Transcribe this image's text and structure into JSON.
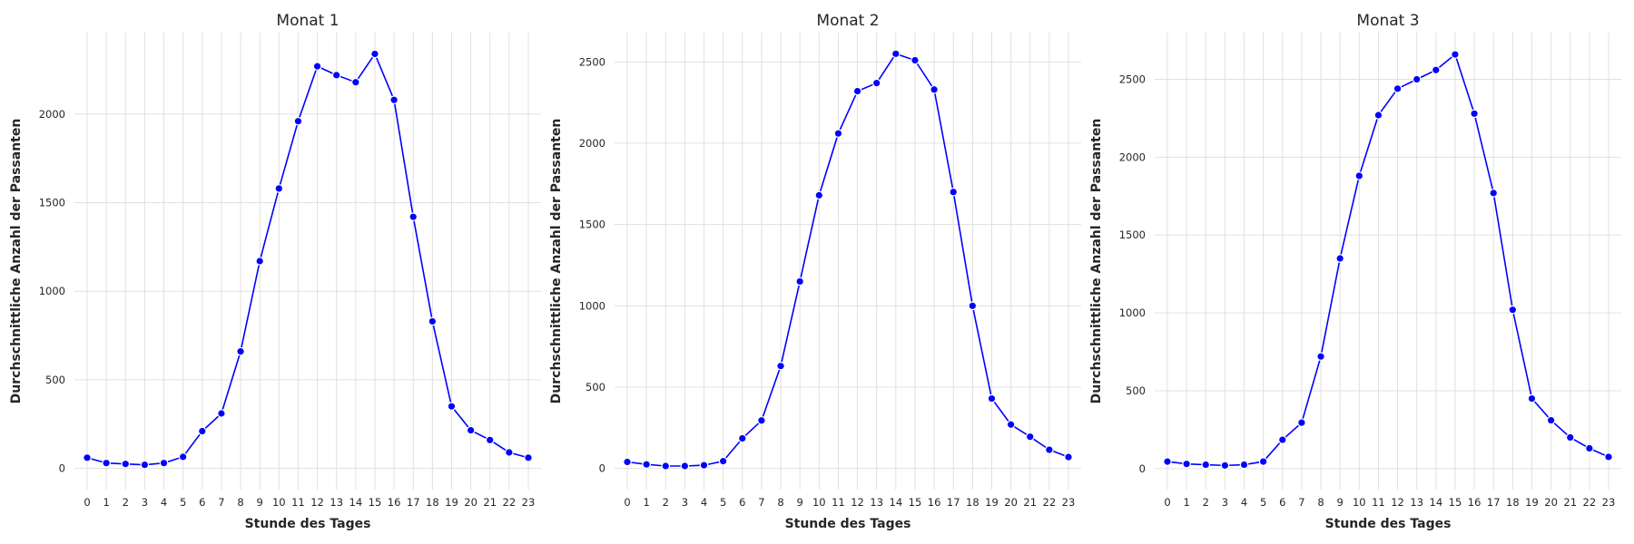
{
  "chart_data": [
    {
      "type": "line",
      "title": "Monat 1",
      "xlabel": "Stunde des Tages",
      "ylabel": "Durchschnittliche Anzahl der Passanten",
      "x": [
        0,
        1,
        2,
        3,
        4,
        5,
        6,
        7,
        8,
        9,
        10,
        11,
        12,
        13,
        14,
        15,
        16,
        17,
        18,
        19,
        20,
        21,
        22,
        23
      ],
      "y": [
        60,
        30,
        25,
        20,
        30,
        65,
        210,
        310,
        660,
        1170,
        1580,
        1960,
        2270,
        2220,
        2180,
        2340,
        2080,
        1420,
        830,
        350,
        215,
        160,
        90,
        60
      ],
      "yticks": [
        0,
        500,
        1000,
        1500,
        2000
      ],
      "ylim": [
        -120,
        2460
      ],
      "grid": true,
      "color": "#0000ff"
    },
    {
      "type": "line",
      "title": "Monat 2",
      "xlabel": "Stunde des Tages",
      "ylabel": "Durchschnittliche Anzahl der Passanten",
      "x": [
        0,
        1,
        2,
        3,
        4,
        5,
        6,
        7,
        8,
        9,
        10,
        11,
        12,
        13,
        14,
        15,
        16,
        17,
        18,
        19,
        20,
        21,
        22,
        23
      ],
      "y": [
        40,
        25,
        15,
        15,
        20,
        45,
        185,
        295,
        630,
        1150,
        1680,
        2060,
        2320,
        2370,
        2550,
        2510,
        2330,
        1700,
        1000,
        430,
        270,
        195,
        115,
        70
      ],
      "yticks": [
        0,
        500,
        1000,
        1500,
        2000,
        2500
      ],
      "ylim": [
        -130,
        2680
      ],
      "grid": true,
      "color": "#0000ff"
    },
    {
      "type": "line",
      "title": "Monat 3",
      "xlabel": "Stunde des Tages",
      "ylabel": "Durchschnittliche Anzahl der Passanten",
      "x": [
        0,
        1,
        2,
        3,
        4,
        5,
        6,
        7,
        8,
        9,
        10,
        11,
        12,
        13,
        14,
        15,
        16,
        17,
        18,
        19,
        20,
        21,
        22,
        23
      ],
      "y": [
        45,
        30,
        25,
        20,
        25,
        45,
        185,
        295,
        720,
        1350,
        1880,
        2270,
        2440,
        2500,
        2560,
        2660,
        2280,
        1770,
        1020,
        450,
        310,
        200,
        130,
        75
      ],
      "yticks": [
        0,
        500,
        1000,
        1500,
        2000,
        2500
      ],
      "ylim": [
        -135,
        2800
      ],
      "grid": true,
      "color": "#0000ff"
    }
  ]
}
